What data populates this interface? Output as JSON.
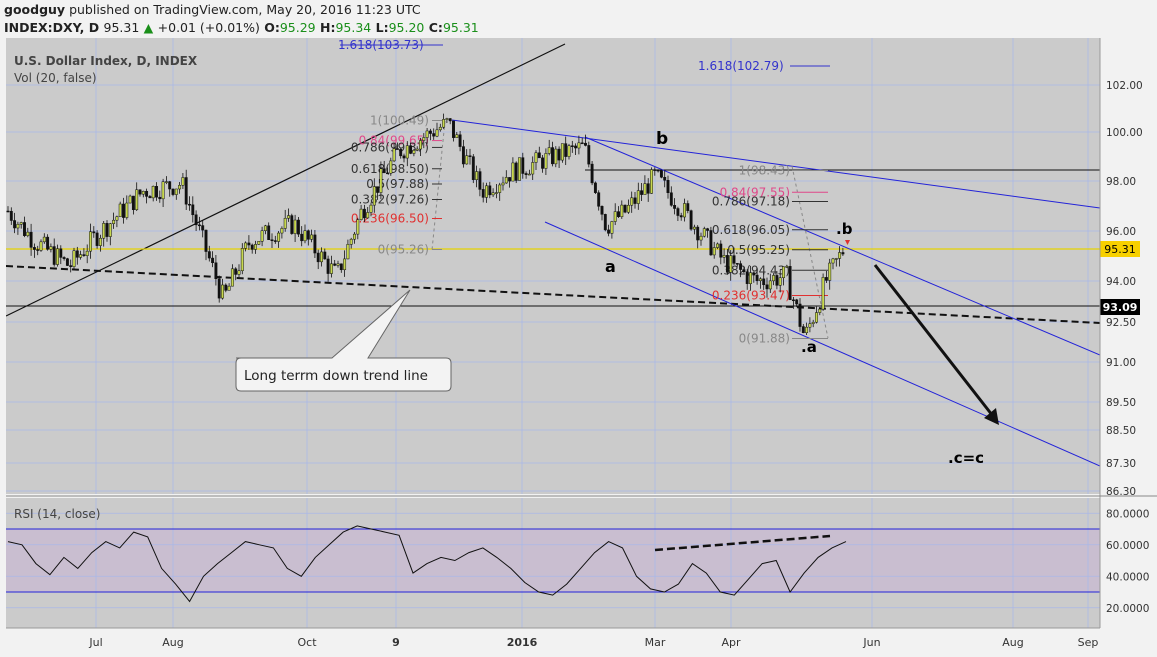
{
  "header": {
    "user": "goodguy",
    "published": "published on TradingView.com, May 20, 2016 11:23 UTC",
    "symbol": "INDEX:DXY, D",
    "last": "95.31",
    "change": "+0.01 (+0.01%)",
    "o_label": "O:",
    "o": "95.29",
    "h_label": "H:",
    "h": "95.34",
    "l_label": "L:",
    "l": "95.20",
    "c_label": "C:",
    "c": "95.31"
  },
  "main_pane": {
    "title": "U.S. Dollar Index, D, INDEX",
    "subtitle": "Vol (20, false)"
  },
  "rsi_pane": {
    "title": "RSI (14, close)"
  },
  "chart_data": [
    {
      "type": "candlestick",
      "title": "U.S. Dollar Index, D, INDEX",
      "ylim": [
        86.3,
        103.0
      ],
      "y_ticks": [
        "102.00",
        "100.00",
        "98.00",
        "96.00",
        "94.00",
        "92.50",
        "91.00",
        "89.50",
        "88.50",
        "87.30",
        "86.30"
      ],
      "x_ticks": [
        "Jul",
        "Aug",
        "Oct",
        "9",
        "2016",
        "Mar",
        "Apr",
        "Jun",
        "Aug",
        "Sep"
      ],
      "grid": true,
      "price_labels": [
        {
          "value": "95.31",
          "color": "#f7d000"
        },
        {
          "value": "93.09",
          "color": "#000000"
        }
      ],
      "approx_close_path": [
        {
          "date": "2015-06-01",
          "close": 96.8
        },
        {
          "date": "2015-06-10",
          "close": 95.6
        },
        {
          "date": "2015-06-22",
          "close": 94.6
        },
        {
          "date": "2015-07-01",
          "close": 95.8
        },
        {
          "date": "2015-07-20",
          "close": 97.6
        },
        {
          "date": "2015-08-05",
          "close": 97.9
        },
        {
          "date": "2015-08-24",
          "close": 93.3
        },
        {
          "date": "2015-09-05",
          "close": 95.6
        },
        {
          "date": "2015-09-25",
          "close": 96.3
        },
        {
          "date": "2015-10-14",
          "close": 94.2
        },
        {
          "date": "2015-10-25",
          "close": 96.8
        },
        {
          "date": "2015-11-10",
          "close": 99.2
        },
        {
          "date": "2015-12-01",
          "close": 100.4
        },
        {
          "date": "2015-12-15",
          "close": 97.6
        },
        {
          "date": "2015-12-28",
          "close": 98.4
        },
        {
          "date": "2016-01-15",
          "close": 99.0
        },
        {
          "date": "2016-01-29",
          "close": 99.4
        },
        {
          "date": "2016-02-08",
          "close": 96.2
        },
        {
          "date": "2016-02-17",
          "close": 96.8
        },
        {
          "date": "2016-03-01",
          "close": 98.2
        },
        {
          "date": "2016-03-15",
          "close": 96.5
        },
        {
          "date": "2016-03-29",
          "close": 94.8
        },
        {
          "date": "2016-04-12",
          "close": 94.0
        },
        {
          "date": "2016-04-25",
          "close": 94.2
        },
        {
          "date": "2016-05-03",
          "close": 91.9
        },
        {
          "date": "2016-05-12",
          "close": 94.0
        },
        {
          "date": "2016-05-20",
          "close": 95.31
        }
      ],
      "fib_retracement_1": [
        {
          "label": "1(100.49)",
          "color": "#888888"
        },
        {
          "label": "0.84(99.65)",
          "color": "#e0488a"
        },
        {
          "label": "0.786(99.37)",
          "color": "#333333"
        },
        {
          "label": "0.618(98.50)",
          "color": "#333333"
        },
        {
          "label": "0.5(97.88)",
          "color": "#333333"
        },
        {
          "label": "0.382(97.26)",
          "color": "#333333"
        },
        {
          "label": "0.236(96.50)",
          "color": "#e03030"
        },
        {
          "label": "0(95.26)",
          "color": "#888888"
        }
      ],
      "fib_retracement_2": [
        {
          "label": "1(98.43)",
          "color": "#888888"
        },
        {
          "label": "0.84(97.55)",
          "color": "#e0488a"
        },
        {
          "label": "0.786(97.18)",
          "color": "#333333"
        },
        {
          "label": "0.618(96.05)",
          "color": "#333333"
        },
        {
          "label": "0.5(95.25)",
          "color": "#333333"
        },
        {
          "label": "0.382(94.43)",
          "color": "#333333"
        },
        {
          "label": "0.236(93.47)",
          "color": "#e03030"
        },
        {
          "label": "0(91.88)",
          "color": "#888888"
        }
      ],
      "fib_extensions": [
        {
          "label": "1.618(103.73)",
          "color": "#3333cc"
        },
        {
          "label": "1.618(102.79)",
          "color": "#3333cc"
        }
      ],
      "wave_labels": [
        "b",
        "a",
        ".b",
        ".a",
        ".c=c"
      ],
      "callout": "Long terrm down trend line"
    },
    {
      "type": "line",
      "title": "RSI (14, close)",
      "ylim": [
        15,
        85
      ],
      "y_ticks": [
        "80.0000",
        "60.0000",
        "40.0000",
        "20.0000"
      ],
      "band": [
        30,
        70
      ],
      "approx_values": [
        62,
        60,
        48,
        41,
        52,
        45,
        55,
        62,
        58,
        68,
        65,
        45,
        35,
        24,
        40,
        48,
        55,
        62,
        60,
        58,
        45,
        40,
        52,
        60,
        68,
        72,
        70,
        68,
        66,
        42,
        48,
        52,
        50,
        55,
        58,
        52,
        45,
        36,
        30,
        28,
        35,
        45,
        55,
        62,
        58,
        40,
        32,
        30,
        35,
        48,
        42,
        30,
        28,
        38,
        48,
        50,
        30,
        42,
        52,
        58,
        62
      ]
    }
  ]
}
